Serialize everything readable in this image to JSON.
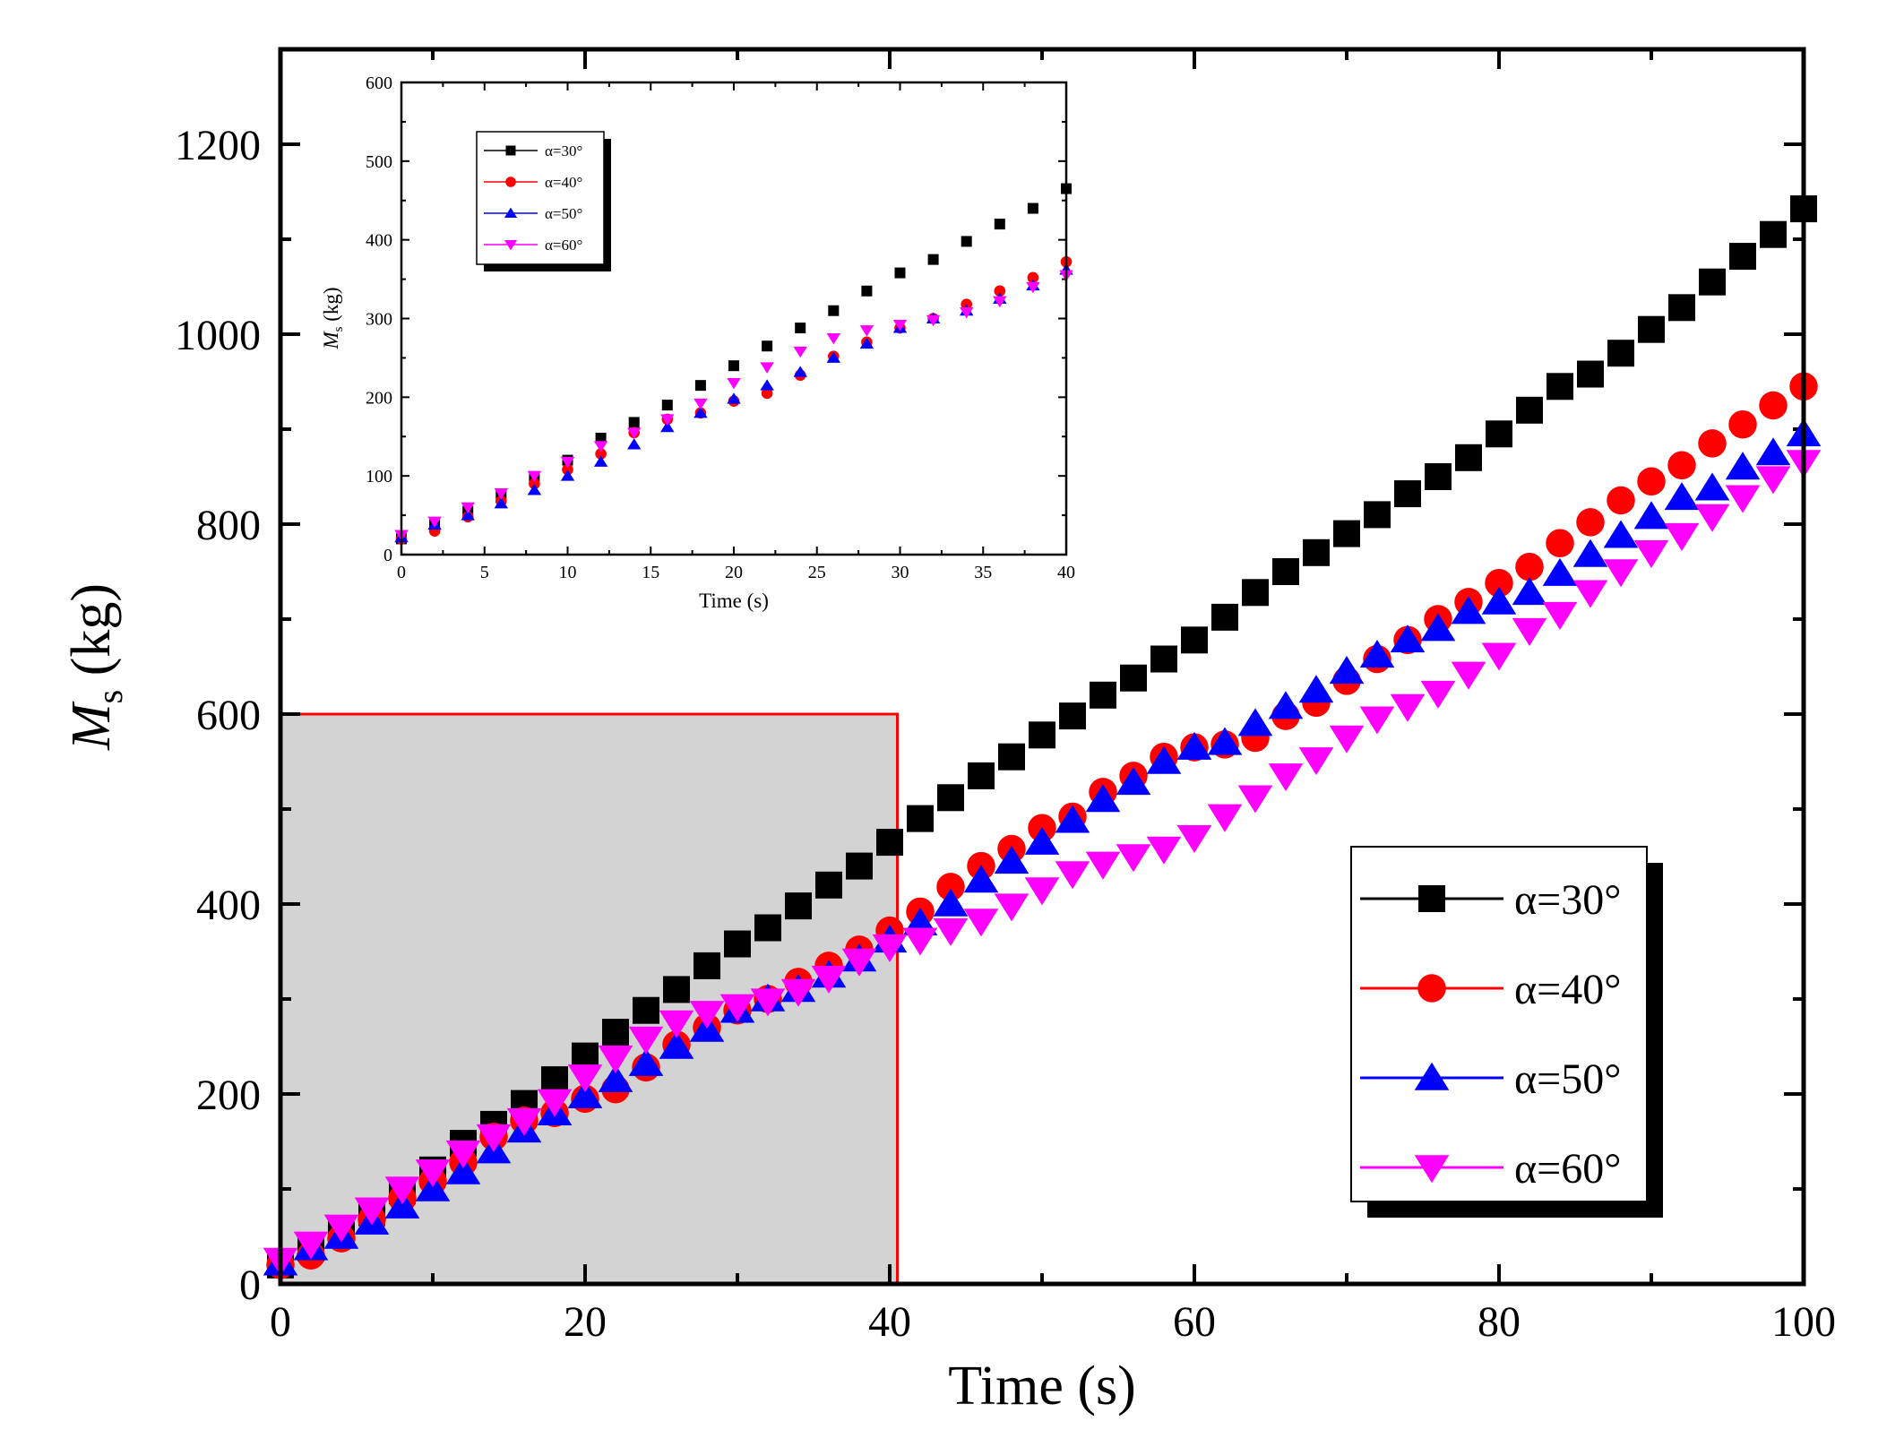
{
  "chart_data": [
    {
      "type": "scatter",
      "role": "main",
      "xlabel": "Time (s)",
      "ylabel_symbol": "M",
      "ylabel_subscript": "s",
      "ylabel_unit": " (kg)",
      "xlim": [
        0,
        100
      ],
      "ylim": [
        0,
        1300
      ],
      "xticks": [
        0,
        20,
        40,
        60,
        80,
        100
      ],
      "yticks": [
        0,
        200,
        400,
        600,
        800,
        1000,
        1200
      ],
      "highlight_region": {
        "x": [
          0,
          40.5
        ],
        "y": [
          0,
          600
        ],
        "fill": "#d3d3d3",
        "stroke": "#ff0000"
      },
      "legend_position": "bottom-right",
      "series": [
        {
          "name": "α=30°",
          "marker": "square",
          "color": "#000000",
          "x": [
            0,
            2,
            4,
            6,
            8,
            10,
            12,
            14,
            16,
            18,
            20,
            22,
            24,
            26,
            28,
            30,
            32,
            34,
            36,
            38,
            40,
            42,
            44,
            46,
            48,
            50,
            52,
            54,
            56,
            58,
            60,
            62,
            64,
            66,
            68,
            70,
            72,
            74,
            76,
            78,
            80,
            82,
            84,
            86,
            88,
            90,
            92,
            94,
            96,
            98,
            100
          ],
          "values": [
            20,
            38,
            55,
            75,
            98,
            120,
            148,
            168,
            190,
            215,
            240,
            265,
            288,
            310,
            335,
            358,
            375,
            398,
            420,
            440,
            465,
            490,
            512,
            535,
            555,
            578,
            598,
            620,
            638,
            658,
            678,
            702,
            728,
            750,
            770,
            790,
            810,
            832,
            850,
            870,
            895,
            920,
            945,
            958,
            980,
            1005,
            1028,
            1055,
            1082,
            1105,
            1132
          ]
        },
        {
          "name": "α=40°",
          "marker": "circle",
          "color": "#ff0000",
          "x": [
            0,
            2,
            4,
            6,
            8,
            10,
            12,
            14,
            16,
            18,
            20,
            22,
            24,
            26,
            28,
            30,
            32,
            34,
            36,
            38,
            40,
            42,
            44,
            46,
            48,
            50,
            52,
            54,
            56,
            58,
            60,
            62,
            64,
            66,
            68,
            70,
            72,
            74,
            76,
            78,
            80,
            82,
            84,
            86,
            88,
            90,
            92,
            94,
            96,
            98,
            100
          ],
          "values": [
            20,
            30,
            48,
            68,
            90,
            108,
            128,
            155,
            172,
            180,
            195,
            205,
            228,
            252,
            270,
            288,
            300,
            318,
            335,
            352,
            372,
            392,
            418,
            440,
            458,
            480,
            492,
            518,
            535,
            555,
            565,
            568,
            575,
            598,
            612,
            635,
            658,
            678,
            700,
            718,
            738,
            755,
            780,
            802,
            825,
            845,
            862,
            885,
            905,
            925,
            945
          ]
        },
        {
          "name": "α=50°",
          "marker": "triangle-up",
          "color": "#0000ff",
          "x": [
            0,
            2,
            4,
            6,
            8,
            10,
            12,
            14,
            16,
            18,
            20,
            22,
            24,
            26,
            28,
            30,
            32,
            34,
            36,
            38,
            40,
            42,
            44,
            46,
            48,
            50,
            52,
            54,
            56,
            58,
            60,
            62,
            64,
            66,
            68,
            70,
            72,
            74,
            76,
            78,
            80,
            82,
            84,
            86,
            88,
            90,
            92,
            94,
            96,
            98,
            100
          ],
          "values": [
            22,
            38,
            50,
            65,
            82,
            100,
            118,
            140,
            162,
            180,
            198,
            215,
            232,
            250,
            268,
            288,
            300,
            310,
            325,
            342,
            362,
            380,
            400,
            425,
            445,
            465,
            488,
            510,
            528,
            550,
            565,
            570,
            590,
            608,
            625,
            645,
            662,
            678,
            690,
            708,
            718,
            728,
            748,
            768,
            788,
            808,
            828,
            838,
            860,
            875,
            895
          ]
        },
        {
          "name": "α=60°",
          "marker": "triangle-down",
          "color": "#ff00ff",
          "x": [
            0,
            2,
            4,
            6,
            8,
            10,
            12,
            14,
            16,
            18,
            20,
            22,
            24,
            26,
            28,
            30,
            32,
            34,
            36,
            38,
            40,
            42,
            44,
            46,
            48,
            50,
            52,
            54,
            56,
            58,
            60,
            62,
            64,
            66,
            68,
            70,
            72,
            74,
            76,
            78,
            80,
            82,
            84,
            86,
            88,
            90,
            92,
            94,
            96,
            98,
            100
          ],
          "values": [
            25,
            42,
            60,
            78,
            100,
            118,
            138,
            155,
            172,
            192,
            218,
            238,
            258,
            275,
            285,
            292,
            298,
            308,
            322,
            340,
            355,
            362,
            372,
            382,
            398,
            415,
            432,
            442,
            450,
            458,
            470,
            492,
            512,
            535,
            552,
            575,
            595,
            608,
            622,
            642,
            662,
            688,
            705,
            728,
            750,
            770,
            788,
            808,
            828,
            848,
            865
          ]
        }
      ]
    },
    {
      "type": "scatter",
      "role": "inset",
      "position": "top-left",
      "xlabel": "Time (s)",
      "ylabel_symbol": "M",
      "ylabel_subscript": "s",
      "ylabel_unit": " (kg)",
      "xlim": [
        0,
        40
      ],
      "ylim": [
        0,
        600
      ],
      "xticks": [
        0,
        5,
        10,
        15,
        20,
        25,
        30,
        35,
        40
      ],
      "yticks": [
        0,
        100,
        200,
        300,
        400,
        500,
        600
      ],
      "legend_position": "top-left",
      "series": [
        {
          "name": "α=30°",
          "marker": "square",
          "color": "#000000",
          "x": [
            0,
            2,
            4,
            6,
            8,
            10,
            12,
            14,
            16,
            18,
            20,
            22,
            24,
            26,
            28,
            30,
            32,
            34,
            36,
            38,
            40
          ],
          "values": [
            20,
            38,
            55,
            75,
            98,
            120,
            148,
            168,
            190,
            215,
            240,
            265,
            288,
            310,
            335,
            358,
            375,
            398,
            420,
            440,
            465
          ]
        },
        {
          "name": "α=40°",
          "marker": "circle",
          "color": "#ff0000",
          "x": [
            0,
            2,
            4,
            6,
            8,
            10,
            12,
            14,
            16,
            18,
            20,
            22,
            24,
            26,
            28,
            30,
            32,
            34,
            36,
            38,
            40
          ],
          "values": [
            20,
            30,
            48,
            68,
            90,
            108,
            128,
            155,
            172,
            180,
            195,
            205,
            228,
            252,
            270,
            288,
            300,
            318,
            335,
            352,
            372
          ]
        },
        {
          "name": "α=50°",
          "marker": "triangle-up",
          "color": "#0000ff",
          "x": [
            0,
            2,
            4,
            6,
            8,
            10,
            12,
            14,
            16,
            18,
            20,
            22,
            24,
            26,
            28,
            30,
            32,
            34,
            36,
            38,
            40
          ],
          "values": [
            22,
            38,
            50,
            65,
            82,
            100,
            118,
            140,
            162,
            180,
            198,
            215,
            232,
            250,
            268,
            288,
            300,
            310,
            325,
            342,
            362
          ]
        },
        {
          "name": "α=60°",
          "marker": "triangle-down",
          "color": "#ff00ff",
          "x": [
            0,
            2,
            4,
            6,
            8,
            10,
            12,
            14,
            16,
            18,
            20,
            22,
            24,
            26,
            28,
            30,
            32,
            34,
            36,
            38,
            40
          ],
          "values": [
            25,
            42,
            60,
            78,
            100,
            118,
            138,
            155,
            172,
            192,
            218,
            238,
            258,
            275,
            285,
            292,
            298,
            308,
            322,
            340,
            355
          ]
        }
      ]
    }
  ]
}
